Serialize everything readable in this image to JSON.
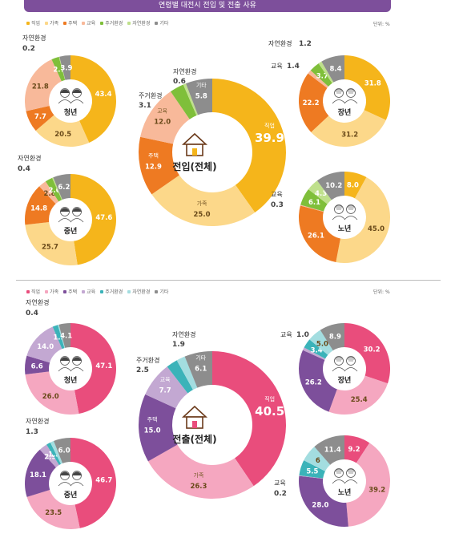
{
  "header": {
    "title": "연령별 대전시 전입 및 전출 사유"
  },
  "top": {
    "legend": [
      "직업",
      "가족",
      "주택",
      "교육",
      "주거환경",
      "자연환경",
      "기타"
    ],
    "unit": "단위: %",
    "colors": [
      "#f5b51b",
      "#fcd88a",
      "#ee7a22",
      "#f8b99a",
      "#7fbf3a",
      "#bfe08c",
      "#8d8d8d"
    ]
  },
  "bottom": {
    "legend": [
      "직업",
      "가족",
      "주택",
      "교육",
      "주거환경",
      "자연환경",
      "기타"
    ],
    "unit": "단위: %",
    "colors": [
      "#e94d7c",
      "#f5a7c0",
      "#7d4f9b",
      "#c3a8d2",
      "#3bb3b9",
      "#a3dde0",
      "#8d8d8d"
    ]
  },
  "chart_data": [
    {
      "type": "pie",
      "group": "전입",
      "label": "청년",
      "categories": [
        "직업",
        "가족",
        "주택",
        "교육",
        "주거환경",
        "자연환경",
        "기타"
      ],
      "values": [
        43.4,
        20.5,
        7.7,
        21.8,
        2.7,
        0.2,
        3.9
      ],
      "value_labels": [
        "43.4",
        "20.5",
        "7.7",
        "21.8",
        "2.7",
        "",
        "3.9"
      ],
      "callouts": [
        {
          "text": "자연환경",
          "value": "0.2"
        }
      ]
    },
    {
      "type": "pie",
      "group": "전입",
      "label": "전입(전체)",
      "categories": [
        "직업",
        "가족",
        "주택",
        "교육",
        "주거환경",
        "자연환경",
        "기타"
      ],
      "values": [
        39.9,
        25.0,
        12.9,
        12.0,
        3.1,
        0.6,
        5.8
      ],
      "value_labels": [
        "39.9",
        "25.0",
        "12.9",
        "12.0",
        "",
        "",
        "5.8"
      ],
      "inner_labels": [
        "직업",
        "가족",
        "주택",
        "교육",
        "",
        "",
        "기타"
      ],
      "callouts": [
        {
          "text": "주거환경",
          "value": "3.1"
        },
        {
          "text": "자연환경",
          "value": "0.6"
        }
      ]
    },
    {
      "type": "pie",
      "group": "전입",
      "label": "장년",
      "categories": [
        "직업",
        "가족",
        "주택",
        "교육",
        "주거환경",
        "자연환경",
        "기타"
      ],
      "values": [
        31.8,
        31.2,
        22.2,
        1.4,
        3.7,
        1.2,
        8.4
      ],
      "value_labels": [
        "31.8",
        "31.2",
        "22.2",
        "",
        "3.7",
        "",
        "8.4"
      ],
      "callouts": [
        {
          "text": "교육",
          "value": "1.4"
        },
        {
          "text": "자연환경",
          "value": "1.2"
        }
      ]
    },
    {
      "type": "pie",
      "group": "전입",
      "label": "중년",
      "categories": [
        "직업",
        "가족",
        "주택",
        "교육",
        "주거환경",
        "자연환경",
        "기타"
      ],
      "values": [
        47.6,
        25.7,
        14.8,
        2.8,
        2.6,
        0.4,
        6.2
      ],
      "value_labels": [
        "47.6",
        "25.7",
        "14.8",
        "2.8",
        "2.6",
        "",
        "6.2"
      ],
      "callouts": [
        {
          "text": "자연환경",
          "value": "0.4"
        }
      ]
    },
    {
      "type": "pie",
      "group": "전입",
      "label": "노년",
      "categories": [
        "직업",
        "가족",
        "주택",
        "교육",
        "주거환경",
        "자연환경",
        "기타"
      ],
      "values": [
        8.0,
        45.0,
        26.1,
        0.3,
        6.1,
        4.3,
        10.2
      ],
      "value_labels": [
        "8.0",
        "45.0",
        "26.1",
        "",
        "6.1",
        "4.3",
        "10.2"
      ],
      "callouts": [
        {
          "text": "교육",
          "value": "0.3"
        }
      ]
    },
    {
      "type": "pie",
      "group": "전출",
      "label": "청년",
      "categories": [
        "직업",
        "가족",
        "주택",
        "교육",
        "주거환경",
        "자연환경",
        "기타"
      ],
      "values": [
        47.1,
        26.0,
        6.6,
        14.0,
        1.9,
        0.4,
        4.1
      ],
      "value_labels": [
        "47.1",
        "26.0",
        "6.6",
        "14.0",
        "1.9",
        "",
        "4.1"
      ],
      "callouts": [
        {
          "text": "자연환경",
          "value": "0.4"
        }
      ]
    },
    {
      "type": "pie",
      "group": "전출",
      "label": "전출(전체)",
      "categories": [
        "직업",
        "가족",
        "주택",
        "교육",
        "주거환경",
        "자연환경",
        "기타"
      ],
      "values": [
        40.5,
        26.3,
        15.0,
        7.7,
        2.5,
        1.9,
        6.1
      ],
      "value_labels": [
        "40.5",
        "26.3",
        "15.0",
        "7.7",
        "",
        "",
        "6.1"
      ],
      "inner_labels": [
        "직업",
        "가족",
        "주택",
        "교육",
        "",
        "",
        "기타"
      ],
      "callouts": [
        {
          "text": "주거환경",
          "value": "2.5"
        },
        {
          "text": "자연환경",
          "value": "1.9"
        }
      ]
    },
    {
      "type": "pie",
      "group": "전출",
      "label": "장년",
      "categories": [
        "직업",
        "가족",
        "주택",
        "교육",
        "주거환경",
        "자연환경",
        "기타"
      ],
      "values": [
        30.2,
        25.4,
        26.2,
        1.0,
        3.4,
        5.0,
        8.9
      ],
      "value_labels": [
        "30.2",
        "25.4",
        "26.2",
        "",
        "3.4",
        "5.0",
        "8.9"
      ],
      "callouts": [
        {
          "text": "교육",
          "value": "1.0"
        }
      ]
    },
    {
      "type": "pie",
      "group": "전출",
      "label": "중년",
      "categories": [
        "직업",
        "가족",
        "주택",
        "교육",
        "주거환경",
        "자연환경",
        "기타"
      ],
      "values": [
        46.7,
        23.5,
        18.1,
        2.9,
        1.5,
        1.3,
        6.0
      ],
      "value_labels": [
        "46.7",
        "23.5",
        "18.1",
        "2.9",
        "1.5",
        "",
        "6.0"
      ],
      "callouts": [
        {
          "text": "자연환경",
          "value": "1.3"
        }
      ]
    },
    {
      "type": "pie",
      "group": "전출",
      "label": "노년",
      "categories": [
        "직업",
        "가족",
        "주택",
        "교육",
        "주거환경",
        "자연환경",
        "기타"
      ],
      "values": [
        9.2,
        39.2,
        28.0,
        0.2,
        5.5,
        6,
        11.4
      ],
      "value_labels": [
        "9.2",
        "39.2",
        "28.0",
        "",
        "5.5",
        "6",
        "11.4"
      ],
      "callouts": [
        {
          "text": "교육",
          "value": "0.2"
        }
      ]
    }
  ]
}
